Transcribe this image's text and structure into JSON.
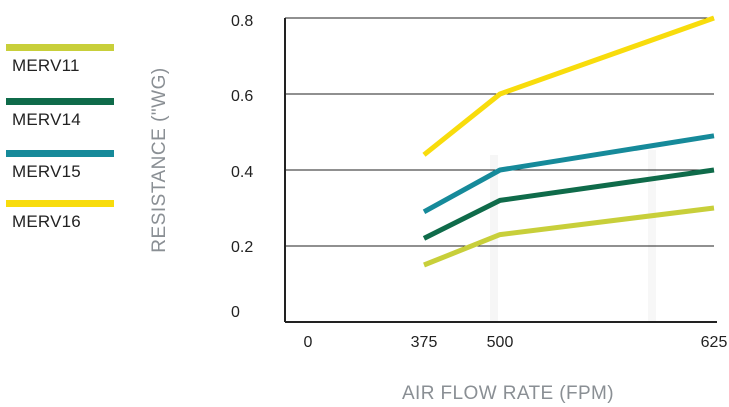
{
  "chart_data": {
    "type": "line",
    "title": "",
    "xlabel": "AIR FLOW RATE (FPM)",
    "ylabel": "RESISTANCE (\"WG)",
    "x_ticks": [
      "0",
      "375",
      "500",
      "625"
    ],
    "y_ticks": [
      "0",
      "0.2",
      "0.4",
      "0.6",
      "0.8"
    ],
    "ylim": [
      0,
      0.8
    ],
    "grid": "horizontal",
    "legend_position": "left",
    "series": [
      {
        "name": "MERV11",
        "color": "#c8cf3a",
        "x": [
          375,
          500,
          625
        ],
        "y": [
          0.15,
          0.23,
          0.3
        ]
      },
      {
        "name": "MERV14",
        "color": "#0f6b4a",
        "x": [
          375,
          500,
          625
        ],
        "y": [
          0.22,
          0.32,
          0.4
        ]
      },
      {
        "name": "MERV15",
        "color": "#168a9a",
        "x": [
          375,
          500,
          625
        ],
        "y": [
          0.29,
          0.4,
          0.49
        ]
      },
      {
        "name": "MERV16",
        "color": "#f8dc0c",
        "x": [
          375,
          500,
          625
        ],
        "y": [
          0.44,
          0.6,
          0.8
        ]
      }
    ]
  }
}
